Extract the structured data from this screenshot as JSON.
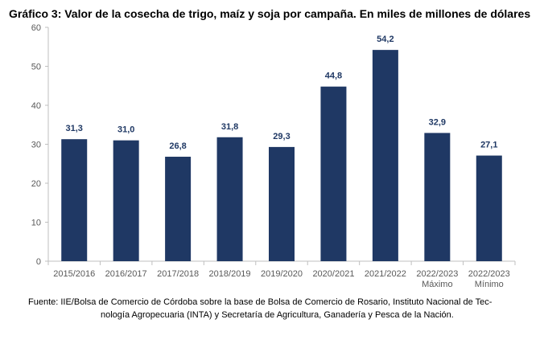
{
  "title": "Gráfico 3: Valor de la cosecha de trigo, maíz y soja por campaña. En miles de millones de dólares",
  "source": {
    "line1": "Fuente: IIE/Bolsa de Comercio de Córdoba sobre la base de Bolsa de Comercio de Rosario, Instituto Nacional de Tec-",
    "line2": "nología Agropecuaria (INTA) y Secretaría de Agricultura, Ganadería y Pesca de la Nación."
  },
  "colors": {
    "bar": "#1f3864",
    "axis": "#bfbfbf",
    "text": "#595959",
    "label": "#1f3864"
  },
  "chart_data": {
    "type": "bar",
    "title": "Gráfico 3: Valor de la cosecha de trigo, maíz y soja por campaña. En miles de millones de dólares",
    "xlabel": "",
    "ylabel": "",
    "ylim": [
      0,
      60
    ],
    "yticks": [
      0,
      10,
      20,
      30,
      40,
      50,
      60
    ],
    "grid": false,
    "categories": [
      [
        "2015/2016"
      ],
      [
        "2016/2017"
      ],
      [
        "2017/2018"
      ],
      [
        "2018/2019"
      ],
      [
        "2019/2020"
      ],
      [
        "2020/2021"
      ],
      [
        "2021/2022"
      ],
      [
        "2022/2023",
        "Máximo"
      ],
      [
        "2022/2023",
        "Mínimo"
      ]
    ],
    "values": [
      31.3,
      31.0,
      26.8,
      31.8,
      29.3,
      44.8,
      54.2,
      32.9,
      27.1
    ],
    "data_labels": [
      "31,3",
      "31,0",
      "26,8",
      "31,8",
      "29,3",
      "44,8",
      "54,2",
      "32,9",
      "27,1"
    ]
  }
}
